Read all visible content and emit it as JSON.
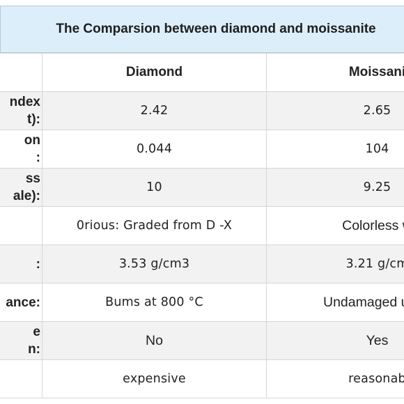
{
  "title": "The Comparsion between diamond and moissanite",
  "columns": {
    "property": "",
    "diamond": "Diamond",
    "moissanite": "Moissani"
  },
  "rows": [
    {
      "property": "ndex\nt):",
      "diamond": "2.42",
      "moissanite": "2.65"
    },
    {
      "property": "on\n:",
      "diamond": "0.044",
      "moissanite": "104"
    },
    {
      "property": "ss\nale):",
      "diamond": "10",
      "moissanite": "9.25"
    },
    {
      "property": "",
      "diamond": "0rious: Graded from D -X",
      "moissanite": "Colorless w"
    },
    {
      "property": ":",
      "diamond": "3.53 g/cm3",
      "moissanite": "3.21 g/cm"
    },
    {
      "property": "ance:",
      "diamond": "Bums at 800 °C",
      "moissanite": "Undamaged up to"
    },
    {
      "property": "e\nn:",
      "diamond": "No",
      "moissanite": "Yes"
    },
    {
      "property": "",
      "diamond": "expensive",
      "moissanite": "reasonab"
    }
  ]
}
